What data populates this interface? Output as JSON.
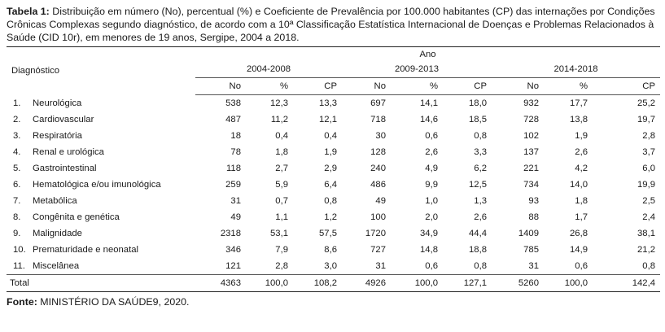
{
  "caption": {
    "label": "Tabela 1:",
    "text": " Distribuição em número (No), percentual (%) e Coeficiente de Prevalência por 100.000 habitantes (CP) das internações por Condições Crônicas Complexas segundo diagnóstico, de acordo com a 10ª Classificação Estatística Internacional de Doenças e Problemas Relacionados à Saúde (CID 10r), em menores de 19 anos, Sergipe, 2004 a 2018."
  },
  "header": {
    "ano": "Ano",
    "diagnostico": "Diagnóstico",
    "periods": [
      "2004-2008",
      "2009-2013",
      "2014-2018"
    ],
    "sub": [
      "No",
      "%",
      "CP"
    ]
  },
  "rows": [
    {
      "idx": "1.",
      "name": "Neurológica",
      "v": [
        "538",
        "12,3",
        "13,3",
        "697",
        "14,1",
        "18,0",
        "932",
        "17,7",
        "25,2"
      ]
    },
    {
      "idx": "2.",
      "name": "Cardiovascular",
      "v": [
        "487",
        "11,2",
        "12,1",
        "718",
        "14,6",
        "18,5",
        "728",
        "13,8",
        "19,7"
      ]
    },
    {
      "idx": "3.",
      "name": "Respiratória",
      "v": [
        "18",
        "0,4",
        "0,4",
        "30",
        "0,6",
        "0,8",
        "102",
        "1,9",
        "2,8"
      ]
    },
    {
      "idx": "4.",
      "name": "Renal e urológica",
      "v": [
        "78",
        "1,8",
        "1,9",
        "128",
        "2,6",
        "3,3",
        "137",
        "2,6",
        "3,7"
      ]
    },
    {
      "idx": "5.",
      "name": "Gastrointestinal",
      "v": [
        "118",
        "2,7",
        "2,9",
        "240",
        "4,9",
        "6,2",
        "221",
        "4,2",
        "6,0"
      ]
    },
    {
      "idx": "6.",
      "name": "Hematológica e/ou imunológica",
      "v": [
        "259",
        "5,9",
        "6,4",
        "486",
        "9,9",
        "12,5",
        "734",
        "14,0",
        "19,9"
      ]
    },
    {
      "idx": "7.",
      "name": "Metabólica",
      "v": [
        "31",
        "0,7",
        "0,8",
        "49",
        "1,0",
        "1,3",
        "93",
        "1,8",
        "2,5"
      ]
    },
    {
      "idx": "8.",
      "name": "Congênita e genética",
      "v": [
        "49",
        "1,1",
        "1,2",
        "100",
        "2,0",
        "2,6",
        "88",
        "1,7",
        "2,4"
      ]
    },
    {
      "idx": "9.",
      "name": "Malignidade",
      "v": [
        "2318",
        "53,1",
        "57,5",
        "1720",
        "34,9",
        "44,4",
        "1409",
        "26,8",
        "38,1"
      ]
    },
    {
      "idx": "10.",
      "name": "Prematuridade e neonatal",
      "v": [
        "346",
        "7,9",
        "8,6",
        "727",
        "14,8",
        "18,8",
        "785",
        "14,9",
        "21,2"
      ]
    },
    {
      "idx": "11.",
      "name": "Miscelânea",
      "v": [
        "121",
        "2,8",
        "3,0",
        "31",
        "0,6",
        "0,8",
        "31",
        "0,6",
        "0,8"
      ]
    }
  ],
  "total": {
    "name": "Total",
    "v": [
      "4363",
      "100,0",
      "108,2",
      "4926",
      "100,0",
      "127,1",
      "5260",
      "100,0",
      "142,4"
    ]
  },
  "source": {
    "label": "Fonte:",
    "text": " MINISTÉRIO DA SAÚDE9, 2020."
  }
}
